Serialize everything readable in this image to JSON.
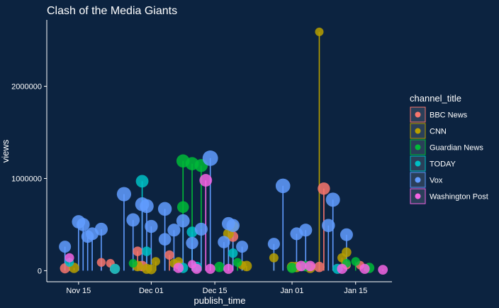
{
  "chart_data": {
    "type": "scatter",
    "title": "Clash of the Media Giants",
    "xlabel": "publish_time",
    "ylabel": "views",
    "x_ticks": [
      {
        "date": "2017-11-15",
        "label": "Nov 15"
      },
      {
        "date": "2017-12-01",
        "label": "Dec 01"
      },
      {
        "date": "2017-12-15",
        "label": "Dec 15"
      },
      {
        "date": "2018-01-01",
        "label": "Jan 01"
      },
      {
        "date": "2018-01-15",
        "label": "Jan 15"
      }
    ],
    "y_ticks": [
      0,
      1000000,
      2000000
    ],
    "y_tick_labels": [
      "0",
      "1000000",
      "2000000"
    ],
    "xlim": [
      "2017-11-08",
      "2018-01-23"
    ],
    "ylim": [
      -120000,
      2720000
    ],
    "grid": false,
    "legend_placement": "right",
    "legend_title": "channel_title",
    "series": [
      {
        "name": "BBC News",
        "color": "#F8766D",
        "points": [
          [
            "2017-11-12",
            25000
          ],
          [
            "2017-11-20",
            90000
          ],
          [
            "2017-11-22",
            80000
          ],
          [
            "2017-11-23",
            20000
          ],
          [
            "2017-11-28",
            210000
          ],
          [
            "2017-11-29",
            50000
          ],
          [
            "2017-12-05",
            170000
          ],
          [
            "2017-12-07",
            60000
          ],
          [
            "2017-12-19",
            370000
          ],
          [
            "2018-01-07",
            40000
          ],
          [
            "2018-01-08",
            890000
          ],
          [
            "2018-01-13",
            60000
          ],
          [
            "2018-01-16",
            60000
          ]
        ]
      },
      {
        "name": "CNN",
        "color": "#B79F00",
        "points": [
          [
            "2017-11-14",
            30000
          ],
          [
            "2017-11-28",
            50000
          ],
          [
            "2017-11-30",
            20000
          ],
          [
            "2017-12-01",
            15000
          ],
          [
            "2017-12-02",
            100000
          ],
          [
            "2017-12-06",
            80000
          ],
          [
            "2017-12-07",
            100000
          ],
          [
            "2017-12-18",
            400000
          ],
          [
            "2017-12-19",
            480000
          ],
          [
            "2017-12-21",
            60000
          ],
          [
            "2017-12-22",
            50000
          ],
          [
            "2017-12-28",
            140000
          ],
          [
            "2018-01-01",
            40000
          ],
          [
            "2018-01-02",
            40000
          ],
          [
            "2018-01-05",
            30000
          ],
          [
            "2018-01-07",
            2590000
          ],
          [
            "2018-01-12",
            140000
          ],
          [
            "2018-01-13",
            200000
          ]
        ]
      },
      {
        "name": "Guardian News",
        "color": "#00BA38",
        "points": [
          [
            "2017-11-27",
            80000
          ],
          [
            "2017-12-08",
            1190000
          ],
          [
            "2017-12-08",
            690000
          ],
          [
            "2017-12-10",
            1160000
          ],
          [
            "2017-12-12",
            1140000
          ],
          [
            "2017-12-16",
            40000
          ],
          [
            "2017-12-20",
            90000
          ],
          [
            "2018-01-01",
            30000
          ],
          [
            "2018-01-04",
            50000
          ],
          [
            "2018-01-13",
            80000
          ],
          [
            "2018-01-15",
            100000
          ],
          [
            "2018-01-18",
            30000
          ]
        ]
      },
      {
        "name": "TODAY",
        "color": "#00BFC4",
        "points": [
          [
            "2017-11-13",
            90000
          ],
          [
            "2017-11-23",
            20000
          ],
          [
            "2017-11-29",
            970000
          ],
          [
            "2017-11-30",
            210000
          ],
          [
            "2017-12-08",
            30000
          ],
          [
            "2017-12-10",
            420000
          ],
          [
            "2017-12-11",
            40000
          ],
          [
            "2017-12-19",
            190000
          ],
          [
            "2018-01-11",
            20000
          ]
        ]
      },
      {
        "name": "Vox",
        "color": "#619CFF",
        "points": [
          [
            "2017-11-12",
            260000
          ],
          [
            "2017-11-15",
            530000
          ],
          [
            "2017-11-16",
            500000
          ],
          [
            "2017-11-17",
            370000
          ],
          [
            "2017-11-18",
            400000
          ],
          [
            "2017-11-20",
            450000
          ],
          [
            "2017-11-25",
            830000
          ],
          [
            "2017-11-27",
            550000
          ],
          [
            "2017-11-29",
            720000
          ],
          [
            "2017-11-30",
            700000
          ],
          [
            "2017-12-01",
            480000
          ],
          [
            "2017-12-04",
            670000
          ],
          [
            "2017-12-04",
            340000
          ],
          [
            "2017-12-06",
            440000
          ],
          [
            "2017-12-08",
            540000
          ],
          [
            "2017-12-10",
            300000
          ],
          [
            "2017-12-12",
            450000
          ],
          [
            "2017-12-14",
            1220000
          ],
          [
            "2017-12-17",
            310000
          ],
          [
            "2017-12-18",
            510000
          ],
          [
            "2017-12-19",
            490000
          ],
          [
            "2017-12-21",
            260000
          ],
          [
            "2017-12-28",
            290000
          ],
          [
            "2017-12-30",
            920000
          ],
          [
            "2018-01-02",
            400000
          ],
          [
            "2018-01-04",
            440000
          ],
          [
            "2018-01-09",
            490000
          ],
          [
            "2018-01-10",
            770000
          ],
          [
            "2018-01-13",
            390000
          ]
        ]
      },
      {
        "name": "Washington Post",
        "color": "#F564E3",
        "points": [
          [
            "2017-11-13",
            140000
          ],
          [
            "2017-12-07",
            30000
          ],
          [
            "2017-12-10",
            70000
          ],
          [
            "2017-12-11",
            20000
          ],
          [
            "2017-12-13",
            980000
          ],
          [
            "2017-12-14",
            20000
          ],
          [
            "2017-12-18",
            20000
          ],
          [
            "2018-01-03",
            50000
          ],
          [
            "2018-01-05",
            50000
          ],
          [
            "2018-01-12",
            20000
          ],
          [
            "2018-01-17",
            20000
          ],
          [
            "2018-01-21",
            10000
          ]
        ]
      }
    ]
  }
}
